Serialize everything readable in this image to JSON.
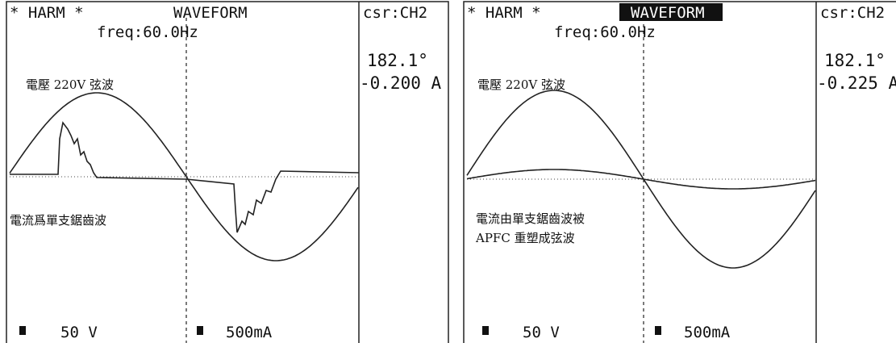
{
  "panels": [
    {
      "mode": "* HARM *",
      "view": "WAVEFORM",
      "cursor": "csr:CH2",
      "freq": "freq:60.0Hz",
      "angle": "182.1°",
      "current": "-0.200 A",
      "annotations": [
        "電壓 220V 弦波",
        "電流爲單支鋸齒波"
      ],
      "voltage_scale": "50 V",
      "current_scale": "500mA"
    },
    {
      "mode": "* HARM *",
      "view": "WAVEFORM",
      "cursor": "csr:CH2",
      "freq": "freq:60.0Hz",
      "angle": "182.1°",
      "current": "-0.225 A",
      "annotations": [
        "電壓 220V 弦波",
        "電流由單支鋸齒波被",
        "APFC 重塑成弦波"
      ],
      "voltage_scale": "50 V",
      "current_scale": "500mA"
    }
  ]
}
